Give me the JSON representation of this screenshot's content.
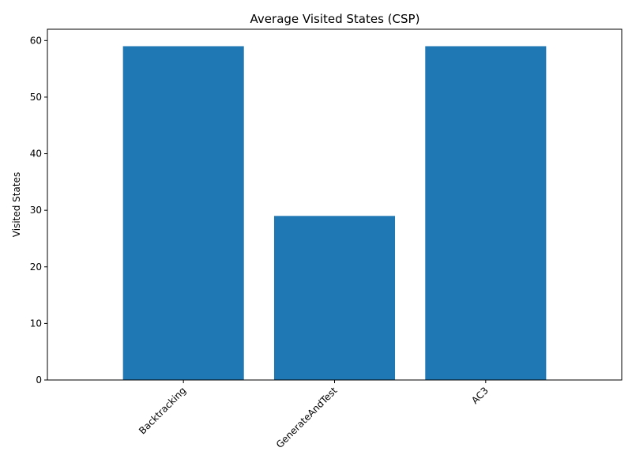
{
  "chart_data": {
    "type": "bar",
    "title": "Average Visited States (CSP)",
    "xlabel": "",
    "ylabel": "Visited States",
    "categories": [
      "Backtracking",
      "GenerateAndTest",
      "AC3"
    ],
    "values": [
      59,
      29,
      59
    ],
    "ylim": [
      0,
      62
    ],
    "yticks": [
      0,
      10,
      20,
      30,
      40,
      50,
      60
    ],
    "bar_color": "#1f77b4",
    "grid": false,
    "legend": "none"
  }
}
